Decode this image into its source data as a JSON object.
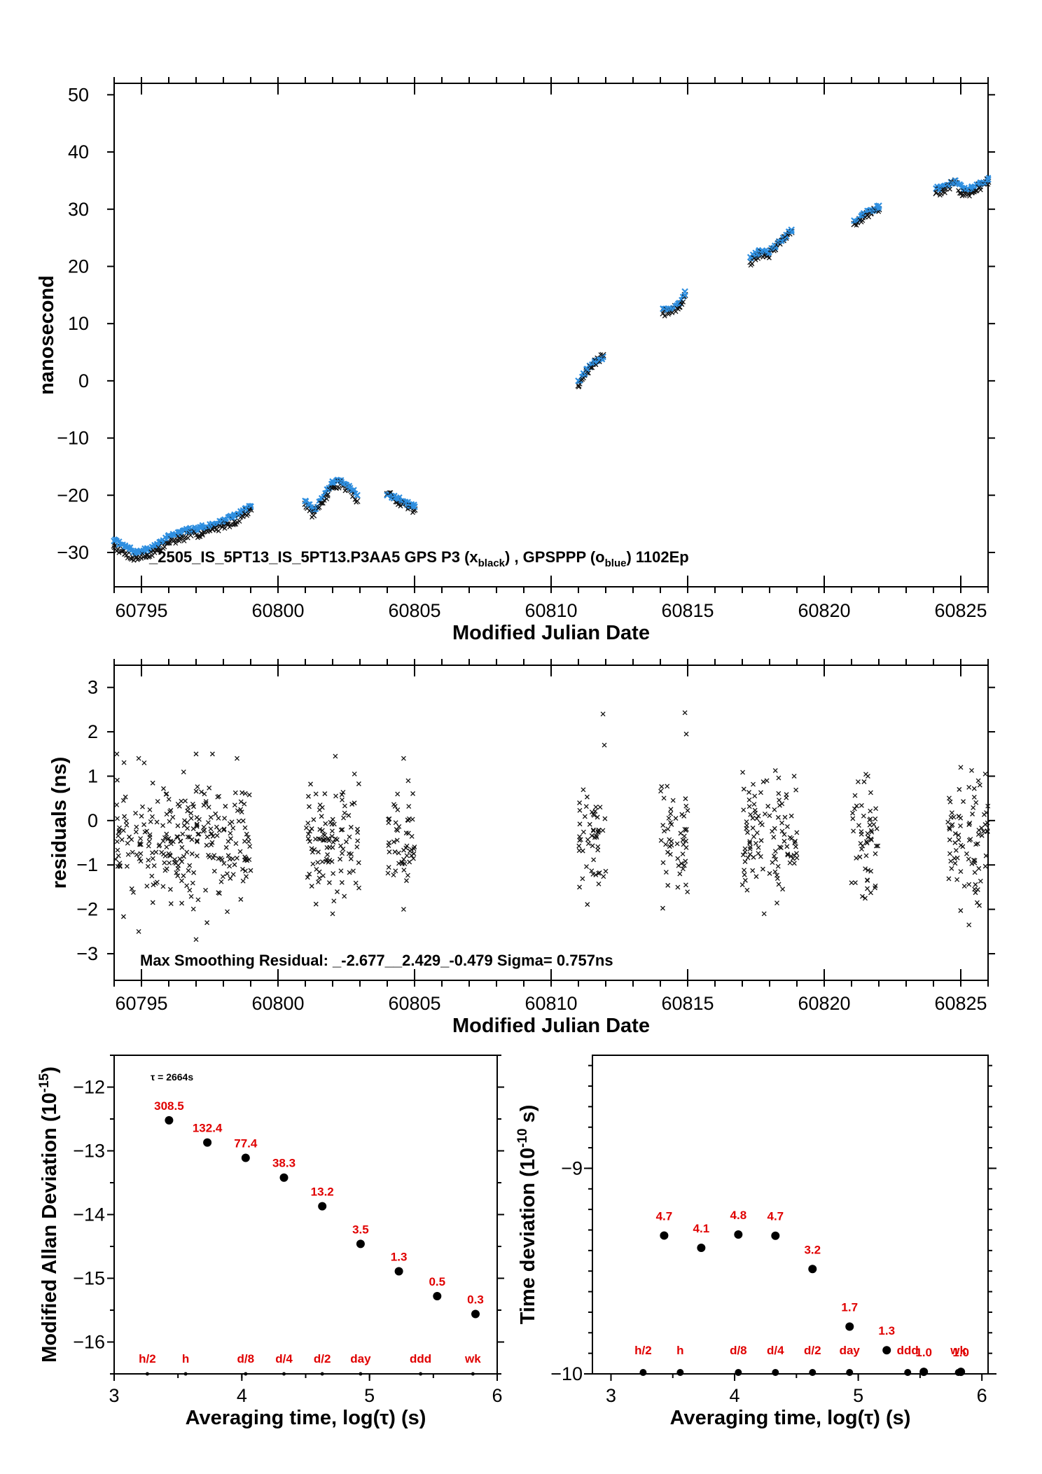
{
  "chart_data": [
    {
      "type": "scatter",
      "id": "timeseries",
      "annotation": "_2505_IS_5PT13_IS_5PT13.P3AA5     GPS P3 (x",
      "annotation_sub1": "black",
      "annotation_mid": ") ,  GPSPPP (o",
      "annotation_sub2": "blue",
      "annotation_end": ")  1102Ep",
      "xlabel": "Modified Julian Date",
      "ylabel": "nanosecond",
      "xlim": [
        60794,
        60826
      ],
      "ylim": [
        -36,
        52
      ],
      "xticks": [
        60795,
        60800,
        60805,
        60810,
        60815,
        60820,
        60825
      ],
      "yticks": [
        -30,
        -20,
        -10,
        0,
        10,
        20,
        30,
        40,
        50
      ],
      "colors": {
        "series_black": "#111111",
        "series_blue": "#2f8fe0"
      },
      "series": [
        {
          "name": "GPS P3",
          "marker": "x",
          "color": "black",
          "x": [
            60794.0,
            60794.4,
            60794.8,
            60795.2,
            60795.6,
            60796.0,
            60796.4,
            60796.8,
            60797.2,
            60797.6,
            60798.0,
            60798.4,
            60798.8,
            60799.0,
            60801.0,
            60801.3,
            60801.8,
            60802.0,
            60802.3,
            60802.6,
            60802.9,
            60804.0,
            60804.4,
            60804.8,
            60805.0,
            60811.0,
            60811.3,
            60811.6,
            60811.9,
            60814.1,
            60814.3,
            60814.7,
            60814.9,
            60817.3,
            60817.6,
            60817.9,
            60818.2,
            60818.5,
            60818.8,
            60821.1,
            60821.4,
            60821.7,
            60822.0,
            60824.1,
            60824.3,
            60824.8,
            60825.1,
            60825.4,
            60825.7,
            60826.0
          ],
          "y": [
            -28.8,
            -30.2,
            -31.0,
            -30.5,
            -29.6,
            -28.2,
            -27.6,
            -27.0,
            -26.6,
            -26.0,
            -25.2,
            -24.6,
            -23.2,
            -22.5,
            -21.5,
            -23.5,
            -20.0,
            -18.4,
            -18.0,
            -19.0,
            -21.0,
            -19.8,
            -21.0,
            -22.0,
            -22.5,
            -0.8,
            1.5,
            3.0,
            4.5,
            11.8,
            12.0,
            13.0,
            15.0,
            20.8,
            22.0,
            21.8,
            23.0,
            24.6,
            26.0,
            27.4,
            28.6,
            29.4,
            30.0,
            32.8,
            33.2,
            34.6,
            32.5,
            33.0,
            34.0,
            34.8
          ]
        },
        {
          "name": "GPSPPP",
          "marker": "o",
          "color": "blue",
          "x": [
            60794.0,
            60794.4,
            60794.8,
            60795.2,
            60795.6,
            60796.0,
            60796.4,
            60796.8,
            60797.2,
            60797.6,
            60798.0,
            60798.4,
            60798.8,
            60799.0,
            60801.0,
            60801.3,
            60801.8,
            60802.0,
            60802.3,
            60802.6,
            60802.9,
            60804.0,
            60804.4,
            60804.8,
            60805.0,
            60811.0,
            60811.3,
            60811.6,
            60811.9,
            60814.1,
            60814.3,
            60814.7,
            60814.9,
            60817.3,
            60817.6,
            60817.9,
            60818.2,
            60818.5,
            60818.8,
            60821.1,
            60821.4,
            60821.7,
            60822.0,
            60824.1,
            60824.3,
            60824.8,
            60825.1,
            60825.4,
            60825.7,
            60826.0
          ],
          "y": [
            -28.0,
            -29.0,
            -30.0,
            -29.5,
            -28.6,
            -27.0,
            -26.5,
            -26.0,
            -25.6,
            -25.0,
            -24.4,
            -23.6,
            -22.4,
            -22.0,
            -21.0,
            -22.6,
            -19.0,
            -17.6,
            -17.4,
            -18.4,
            -20.0,
            -20.0,
            -20.6,
            -21.6,
            -22.0,
            0.0,
            2.0,
            3.4,
            4.2,
            12.6,
            12.6,
            13.6,
            15.6,
            21.6,
            22.6,
            22.4,
            23.6,
            25.0,
            26.4,
            28.0,
            29.0,
            29.8,
            30.6,
            33.6,
            33.8,
            35.0,
            33.4,
            33.8,
            34.4,
            35.2
          ]
        }
      ]
    },
    {
      "type": "scatter",
      "id": "residuals",
      "annotation": "Max Smoothing Residual: _-2.677__2.429_-0.479  Sigma= 0.757ns",
      "xlabel": "Modified Julian Date",
      "ylabel": "residuals (ns)",
      "xlim": [
        60794,
        60826
      ],
      "ylim": [
        -3.6,
        3.5
      ],
      "xticks": [
        60795,
        60800,
        60805,
        60810,
        60815,
        60820,
        60825
      ],
      "yticks": [
        -3,
        -2,
        -1,
        0,
        1,
        2,
        3
      ],
      "segments": [
        [
          60794.0,
          60799.0
        ],
        [
          60801.0,
          60803.0
        ],
        [
          60804.0,
          60805.0
        ],
        [
          60811.0,
          60812.0
        ],
        [
          60814.0,
          60815.0
        ],
        [
          60817.0,
          60819.0
        ],
        [
          60821.0,
          60822.0
        ],
        [
          60824.5,
          60826.0
        ]
      ],
      "series": [
        {
          "name": "residuals",
          "marker": "x",
          "x": [
            60794.1,
            60794.9,
            60795.1,
            60797.0,
            60797.6,
            60798.5,
            60802.1,
            60802.8,
            60804.6,
            60811.9,
            60811.95,
            60814.9,
            60814.95,
            60817.9,
            60818.9,
            60821.6,
            60825.0,
            60825.3,
            60825.7,
            60825.9,
            60794.9,
            60797.0,
            60797.4,
            60802.0,
            60804.6,
            60817.8,
            60821.5,
            60825.3,
            60825.6
          ],
          "y": [
            1.5,
            1.4,
            1.3,
            1.5,
            1.5,
            1.4,
            1.45,
            1.05,
            1.4,
            2.4,
            1.7,
            2.43,
            1.95,
            0.9,
            1.0,
            1.0,
            1.2,
            0.75,
            0.8,
            1.05,
            -2.5,
            -2.68,
            -2.3,
            -2.1,
            -2.0,
            -2.1,
            -1.75,
            -2.35,
            -1.85
          ]
        }
      ]
    },
    {
      "type": "scatter",
      "id": "modified-allan-deviation",
      "xlabel": "Averaging time, log(τ) (s)",
      "ylabel": "Modified Allan Deviation (10",
      "ylabel_sup": "-15",
      "ylabel_end": ")",
      "tau_note": "τ = 2664s",
      "xlim": [
        3,
        6
      ],
      "ylim": [
        -16.5,
        -11.5
      ],
      "xticks": [
        3,
        4,
        5,
        6
      ],
      "yticks": [
        -16,
        -15,
        -14,
        -13,
        -12
      ],
      "x": [
        3.43,
        3.73,
        4.03,
        4.33,
        4.63,
        4.93,
        5.23,
        5.53,
        5.83
      ],
      "y": [
        -12.52,
        -12.87,
        -13.11,
        -13.42,
        -13.87,
        -14.46,
        -14.89,
        -15.28,
        -15.56
      ],
      "labels": [
        "308.5",
        "132.4",
        "77.4",
        "38.3",
        "13.2",
        "3.5",
        "1.3",
        "0.5",
        "0.3"
      ],
      "markers_x": [
        3.26,
        3.56,
        4.03,
        4.33,
        4.63,
        4.93,
        5.4,
        5.81
      ],
      "markers": [
        "h/2",
        "h",
        "d/8",
        "d/4",
        "d/2",
        "day",
        "ddd",
        "wk"
      ]
    },
    {
      "type": "scatter",
      "id": "time-deviation",
      "xlabel": "Averaging time, log(τ) (s)",
      "ylabel": "Time deviation (10",
      "ylabel_sup": "-10",
      "ylabel_end": " s)",
      "xlim": [
        2.85,
        6.05
      ],
      "ylim": [
        -10.0,
        -8.45
      ],
      "ytick_values": [
        -10.0,
        -9.9,
        -9.8,
        -9.7,
        -9.6,
        -9.5,
        -9.4,
        -9.3,
        -9.2,
        -9.1,
        -9.0,
        -8.9,
        -8.8,
        -8.7,
        -8.6,
        -8.5
      ],
      "yticks_labeled": [
        -10,
        -9
      ],
      "xticks": [
        3,
        4,
        5,
        6
      ],
      "x": [
        3.43,
        3.73,
        4.03,
        4.33,
        4.63,
        4.93,
        5.23,
        5.53,
        5.83
      ],
      "y": [
        -9.327,
        -9.387,
        -9.322,
        -9.328,
        -9.49,
        -9.77,
        -9.885,
        -9.99,
        -9.99
      ],
      "labels": [
        "4.7",
        "4.1",
        "4.8",
        "4.7",
        "3.2",
        "1.7",
        "1.3",
        "1.0",
        "1.0"
      ],
      "markers_x": [
        3.26,
        3.56,
        4.03,
        4.33,
        4.63,
        4.93,
        5.4,
        5.81
      ],
      "markers": [
        "h/2",
        "h",
        "d/8",
        "d/4",
        "d/2",
        "day",
        "ddd",
        "wk"
      ]
    }
  ]
}
